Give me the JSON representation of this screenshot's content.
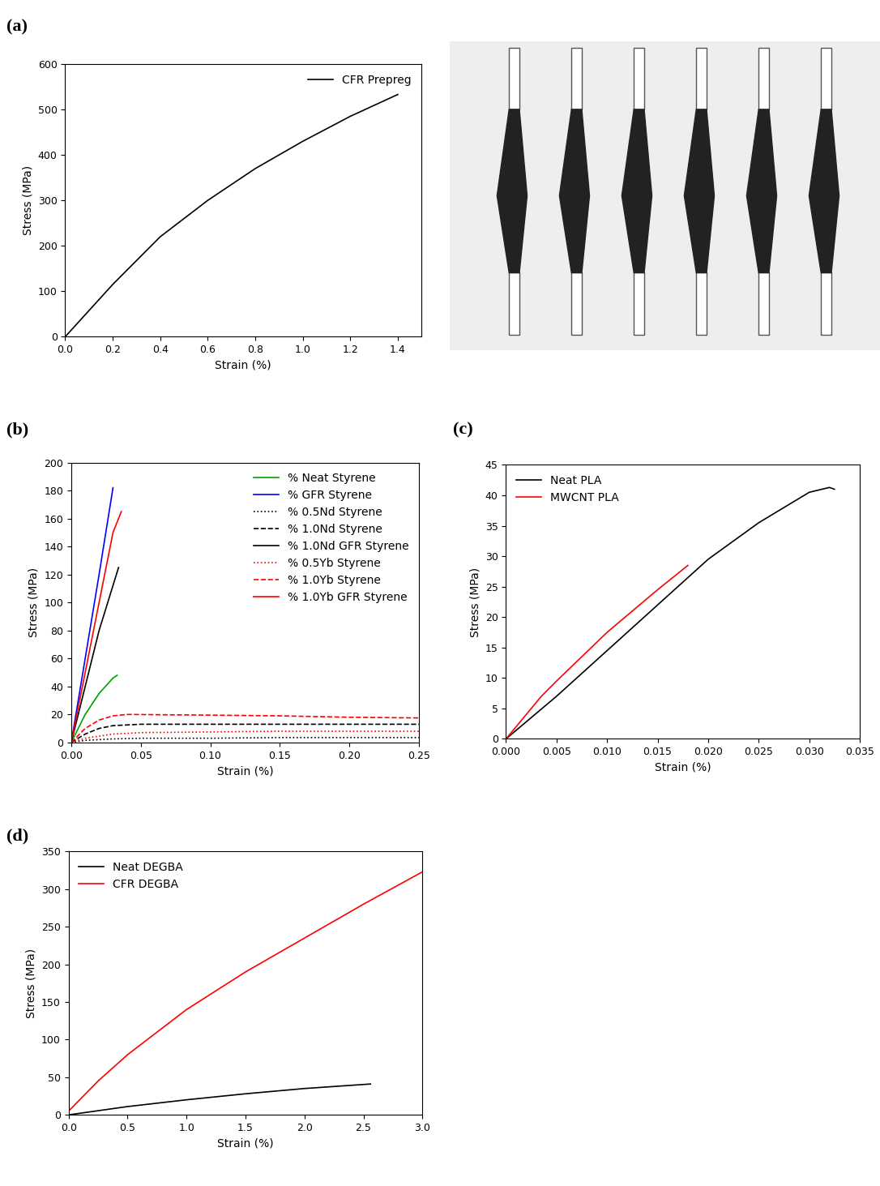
{
  "chart_data": [
    {
      "type": "line",
      "title": "(a)",
      "x_label": "Strain (%)",
      "y_label": "Stress (MPa)",
      "xlim": [
        0,
        1.5
      ],
      "ylim": [
        0,
        600
      ],
      "xticks": [
        {
          "value": 0,
          "label": "0.0"
        },
        {
          "value": 0.2,
          "label": "0.2"
        },
        {
          "value": 0.4,
          "label": "0.4"
        },
        {
          "value": 0.6,
          "label": "0.6"
        },
        {
          "value": 0.8,
          "label": "0.8"
        },
        {
          "value": 1.0,
          "label": "1.0"
        },
        {
          "value": 1.2,
          "label": "1.2"
        },
        {
          "value": 1.4,
          "label": "1.4"
        }
      ],
      "yticks": [
        0,
        100,
        200,
        300,
        400,
        500,
        600
      ],
      "legend": "upper right",
      "series": [
        {
          "name": "CFR Prepreg",
          "color": "#000000",
          "line_style": "solid",
          "x": [
            0,
            0.2,
            0.4,
            0.6,
            0.8,
            1.0,
            1.2,
            1.4
          ],
          "values": [
            0,
            115,
            220,
            300,
            370,
            430,
            485,
            533
          ]
        }
      ]
    },
    {
      "type": "line",
      "title": "(b)",
      "x_label": "Strain (%)",
      "y_label": "Stress (MPa)",
      "xlim": [
        0,
        0.25
      ],
      "ylim": [
        0,
        200
      ],
      "xticks": [
        {
          "value": 0,
          "label": "0.00"
        },
        {
          "value": 0.05,
          "label": "0.05"
        },
        {
          "value": 0.1,
          "label": "0.10"
        },
        {
          "value": 0.15,
          "label": "0.15"
        },
        {
          "value": 0.2,
          "label": "0.20"
        },
        {
          "value": 0.25,
          "label": "0.25"
        }
      ],
      "yticks": [
        0,
        20,
        40,
        60,
        80,
        100,
        120,
        140,
        160,
        180,
        200
      ],
      "legend": "upper right",
      "series": [
        {
          "name": "% Neat Styrene",
          "color": "#00a000",
          "line_style": "solid",
          "x": [
            0,
            0.01,
            0.02,
            0.03,
            0.033
          ],
          "values": [
            0,
            20,
            35,
            46,
            48
          ]
        },
        {
          "name": "% GFR Styrene",
          "color": "#0000ff",
          "line_style": "solid",
          "x": [
            0,
            0.01,
            0.02,
            0.03
          ],
          "values": [
            0,
            60,
            120,
            182
          ]
        },
        {
          "name": "% 0.5Nd Styrene",
          "color": "#000000",
          "line_style": "dotted",
          "x": [
            0,
            0.01,
            0.03,
            0.05,
            0.1,
            0.15,
            0.2,
            0.25
          ],
          "values": [
            0,
            1.5,
            2.5,
            3,
            3,
            3.5,
            3.5,
            3.5
          ]
        },
        {
          "name": "% 1.0Nd Styrene",
          "color": "#000000",
          "line_style": "dashed",
          "x": [
            0,
            0.01,
            0.02,
            0.03,
            0.05,
            0.1,
            0.15,
            0.2,
            0.25
          ],
          "values": [
            0,
            6,
            10,
            12,
            13,
            13,
            13,
            13,
            13
          ]
        },
        {
          "name": "% 1.0Nd GFR Styrene",
          "color": "#000000",
          "line_style": "solid",
          "x": [
            0,
            0.01,
            0.02,
            0.034
          ],
          "values": [
            0,
            40,
            80,
            125
          ]
        },
        {
          "name": "% 0.5Yb Styrene",
          "color": "#ff0000",
          "line_style": "dotted",
          "x": [
            0,
            0.01,
            0.03,
            0.05,
            0.1,
            0.15,
            0.2,
            0.25
          ],
          "values": [
            0,
            3,
            6,
            7,
            7.5,
            8,
            8,
            8
          ]
        },
        {
          "name": "% 1.0Yb Styrene",
          "color": "#ff0000",
          "line_style": "dashed",
          "x": [
            0,
            0.01,
            0.02,
            0.03,
            0.04,
            0.1,
            0.15,
            0.2,
            0.25
          ],
          "values": [
            0,
            10,
            16,
            19,
            20,
            19.5,
            19,
            18,
            17.5
          ]
        },
        {
          "name": "% 1.0Yb GFR Styrene",
          "color": "#ff0000",
          "line_style": "solid",
          "x": [
            0,
            0.01,
            0.02,
            0.03,
            0.036
          ],
          "values": [
            0,
            50,
            100,
            150,
            165
          ]
        }
      ]
    },
    {
      "type": "line",
      "title": "(c)",
      "x_label": "Strain (%)",
      "y_label": "Stress (MPa)",
      "xlim": [
        0,
        0.035
      ],
      "ylim": [
        0,
        45
      ],
      "xticks": [
        {
          "value": 0,
          "label": "0.000"
        },
        {
          "value": 0.005,
          "label": "0.005"
        },
        {
          "value": 0.01,
          "label": "0.010"
        },
        {
          "value": 0.015,
          "label": "0.015"
        },
        {
          "value": 0.02,
          "label": "0.020"
        },
        {
          "value": 0.025,
          "label": "0.025"
        },
        {
          "value": 0.03,
          "label": "0.030"
        },
        {
          "value": 0.035,
          "label": "0.035"
        }
      ],
      "yticks": [
        0,
        5,
        10,
        15,
        20,
        25,
        30,
        35,
        40,
        45
      ],
      "legend": "upper left",
      "series": [
        {
          "name": "Neat PLA",
          "color": "#000000",
          "line_style": "solid",
          "x": [
            0,
            0.005,
            0.01,
            0.015,
            0.02,
            0.025,
            0.03,
            0.032,
            0.0325
          ],
          "values": [
            0,
            7,
            14.5,
            22,
            29.5,
            35.5,
            40.5,
            41.3,
            41
          ]
        },
        {
          "name": "MWCNT PLA",
          "color": "#ff0000",
          "line_style": "solid",
          "x": [
            0,
            0.0035,
            0.005,
            0.01,
            0.015,
            0.018
          ],
          "values": [
            0,
            7,
            9.5,
            17.5,
            24.5,
            28.5
          ]
        }
      ]
    },
    {
      "type": "line",
      "title": "(d)",
      "x_label": "Strain (%)",
      "y_label": "Stress (MPa)",
      "xlim": [
        0,
        3.0
      ],
      "ylim": [
        0,
        350
      ],
      "xticks": [
        {
          "value": 0,
          "label": "0.0"
        },
        {
          "value": 0.5,
          "label": "0.5"
        },
        {
          "value": 1.0,
          "label": "1.0"
        },
        {
          "value": 1.5,
          "label": "1.5"
        },
        {
          "value": 2.0,
          "label": "2.0"
        },
        {
          "value": 2.5,
          "label": "2.5"
        },
        {
          "value": 3.0,
          "label": "3.0"
        }
      ],
      "yticks": [
        0,
        50,
        100,
        150,
        200,
        250,
        300,
        350
      ],
      "legend": "upper left",
      "series": [
        {
          "name": "Neat DEGBA",
          "color": "#000000",
          "line_style": "solid",
          "x": [
            0,
            0.5,
            1.0,
            1.5,
            2.0,
            2.56
          ],
          "values": [
            0,
            11,
            20,
            28,
            35,
            41
          ]
        },
        {
          "name": "CFR DEGBA",
          "color": "#ff0000",
          "line_style": "solid",
          "x": [
            0,
            0.25,
            0.5,
            1.0,
            1.5,
            2.0,
            2.5,
            3.0
          ],
          "values": [
            5,
            45,
            80,
            140,
            190,
            235,
            280,
            323
          ]
        }
      ]
    }
  ]
}
